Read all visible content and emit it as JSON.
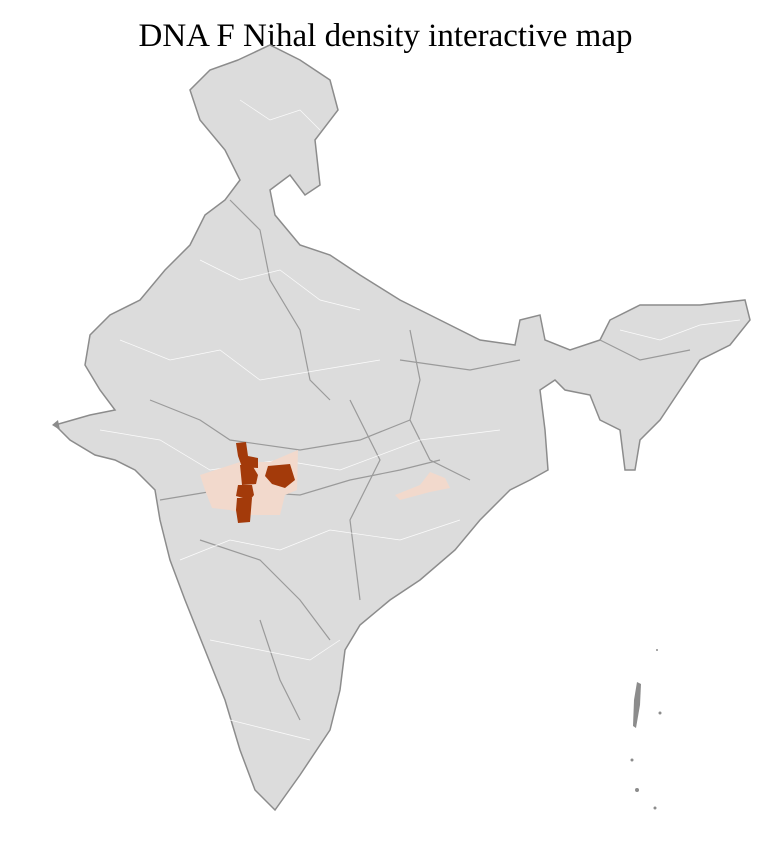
{
  "title": "DNA F Nihal density interactive map",
  "colors": {
    "land": "#dcdcdc",
    "border": "#8c8c8c",
    "district_border": "#ffffff",
    "high_density": "#a33a0a",
    "low_density": "#f2d9cc"
  }
}
